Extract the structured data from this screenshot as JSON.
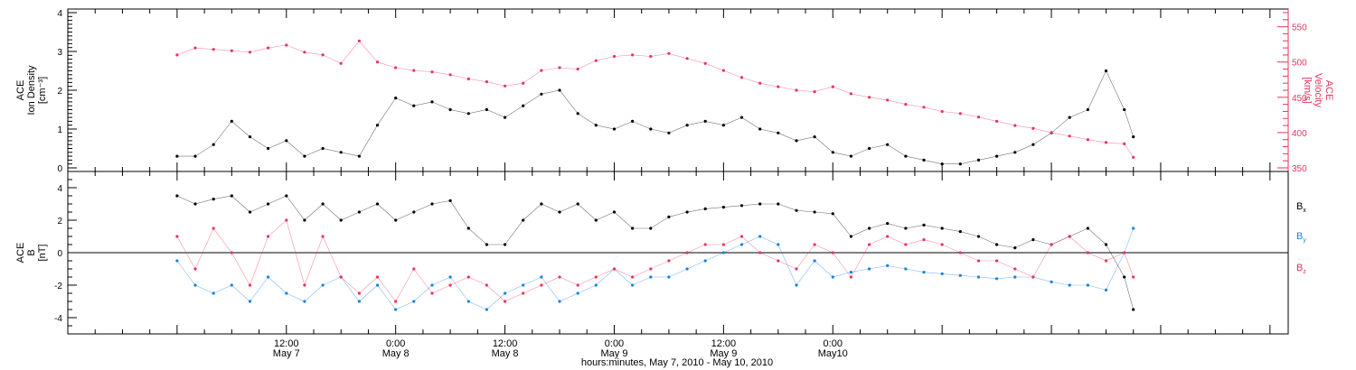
{
  "chart_data": [
    {
      "type": "scatter",
      "panel": "top",
      "ylabel": [
        "ACE",
        "Ion Density",
        "[cm⁻³]"
      ],
      "ylabel_right": [
        "ACE",
        "Velocity",
        "[km/s]"
      ],
      "ylim": [
        0,
        4
      ],
      "yticks": [
        "0",
        "1",
        "2",
        "3",
        "4"
      ],
      "ylim_right": [
        350,
        570
      ],
      "yticks_right": [
        "350",
        "400",
        "450",
        "500",
        "550"
      ],
      "grid": false,
      "series": [
        {
          "axis": "left",
          "color": "#000000",
          "x": [
            0,
            2,
            4,
            6,
            8,
            10,
            12,
            14,
            16,
            18,
            20,
            22,
            24,
            26,
            28,
            30,
            32,
            34,
            36,
            38,
            40,
            42,
            44,
            46,
            48,
            50,
            52,
            54,
            56,
            58,
            60,
            62,
            64,
            66,
            68,
            70,
            72,
            74,
            76,
            78,
            80,
            82,
            84,
            86,
            88,
            90,
            92,
            94,
            96,
            98,
            100,
            102,
            104,
            105
          ],
          "values": [
            0.3,
            0.3,
            0.6,
            1.2,
            0.8,
            0.5,
            0.7,
            0.3,
            0.5,
            0.4,
            0.3,
            1.1,
            1.8,
            1.6,
            1.7,
            1.5,
            1.4,
            1.5,
            1.3,
            1.6,
            1.9,
            2.0,
            1.4,
            1.1,
            1.0,
            1.2,
            1.0,
            0.9,
            1.1,
            1.2,
            1.1,
            1.3,
            1.0,
            0.9,
            0.7,
            0.8,
            0.4,
            0.3,
            0.5,
            0.6,
            0.3,
            0.2,
            0.1,
            0.1,
            0.2,
            0.3,
            0.4,
            0.6,
            0.9,
            1.3,
            1.5,
            2.5,
            1.5,
            0.8
          ]
        },
        {
          "axis": "right",
          "color": "#e8345c",
          "x": [
            0,
            2,
            4,
            6,
            8,
            10,
            12,
            14,
            16,
            18,
            20,
            22,
            24,
            26,
            28,
            30,
            32,
            34,
            36,
            38,
            40,
            42,
            44,
            46,
            48,
            50,
            52,
            54,
            56,
            58,
            60,
            62,
            64,
            66,
            68,
            70,
            72,
            74,
            76,
            78,
            80,
            82,
            84,
            86,
            88,
            90,
            92,
            94,
            96,
            98,
            100,
            102,
            104,
            105
          ],
          "values": [
            510,
            520,
            518,
            516,
            514,
            520,
            524,
            514,
            510,
            498,
            530,
            500,
            492,
            488,
            486,
            482,
            476,
            472,
            466,
            470,
            488,
            492,
            490,
            502,
            508,
            510,
            508,
            512,
            505,
            498,
            488,
            478,
            470,
            465,
            460,
            458,
            465,
            455,
            450,
            446,
            440,
            436,
            430,
            427,
            422,
            416,
            410,
            406,
            400,
            395,
            390,
            386,
            384,
            365
          ]
        }
      ]
    },
    {
      "type": "scatter",
      "panel": "bottom",
      "ylabel": [
        "ACE",
        "B",
        "[nT]"
      ],
      "ylim": [
        -5,
        5
      ],
      "yticks": [
        "-4",
        "-2",
        "0",
        "2",
        "4"
      ],
      "zero_line": true,
      "grid": false,
      "series": [
        {
          "name": "Bx",
          "color": "#000000",
          "x": [
            0,
            2,
            4,
            6,
            8,
            10,
            12,
            14,
            16,
            18,
            20,
            22,
            24,
            26,
            28,
            30,
            32,
            34,
            36,
            38,
            40,
            42,
            44,
            46,
            48,
            50,
            52,
            54,
            56,
            58,
            60,
            62,
            64,
            66,
            68,
            70,
            72,
            74,
            76,
            78,
            80,
            82,
            84,
            86,
            88,
            90,
            92,
            94,
            96,
            98,
            100,
            102,
            104,
            105
          ],
          "values": [
            3.5,
            3.0,
            3.3,
            3.5,
            2.5,
            3.0,
            3.5,
            2.0,
            3.0,
            2.0,
            2.5,
            3.0,
            2.0,
            2.5,
            3.0,
            3.2,
            1.5,
            0.5,
            0.5,
            2.0,
            3.0,
            2.5,
            3.0,
            2.0,
            2.5,
            1.5,
            1.5,
            2.2,
            2.5,
            2.7,
            2.8,
            2.9,
            3.0,
            3.0,
            2.6,
            2.5,
            2.4,
            1.0,
            1.5,
            1.8,
            1.5,
            1.7,
            1.5,
            1.3,
            1.0,
            0.5,
            0.3,
            0.8,
            0.5,
            1.0,
            1.5,
            0.5,
            -1.5,
            -3.5
          ]
        },
        {
          "name": "By",
          "color": "#1a80e0",
          "x": [
            0,
            2,
            4,
            6,
            8,
            10,
            12,
            14,
            16,
            18,
            20,
            22,
            24,
            26,
            28,
            30,
            32,
            34,
            36,
            38,
            40,
            42,
            44,
            46,
            48,
            50,
            52,
            54,
            56,
            58,
            60,
            62,
            64,
            66,
            68,
            70,
            72,
            74,
            76,
            78,
            80,
            82,
            84,
            86,
            88,
            90,
            92,
            94,
            96,
            98,
            100,
            102,
            104,
            105
          ],
          "values": [
            -0.5,
            -2.0,
            -2.5,
            -2.0,
            -3.0,
            -1.5,
            -2.5,
            -3.0,
            -2.0,
            -1.5,
            -3.0,
            -2.0,
            -3.5,
            -3.0,
            -2.0,
            -1.5,
            -3.0,
            -3.5,
            -2.5,
            -2.0,
            -1.5,
            -3.0,
            -2.5,
            -2.0,
            -1.0,
            -2.0,
            -1.5,
            -1.5,
            -1.0,
            -0.5,
            0.0,
            0.5,
            1.0,
            0.5,
            -2.0,
            -0.5,
            -1.5,
            -1.2,
            -1.0,
            -0.8,
            -1.0,
            -1.2,
            -1.3,
            -1.4,
            -1.5,
            -1.6,
            -1.5,
            -1.5,
            -1.8,
            -2.0,
            -2.0,
            -2.3,
            0.0,
            1.5
          ]
        },
        {
          "name": "Bz",
          "color": "#e8345c",
          "x": [
            0,
            2,
            4,
            6,
            8,
            10,
            12,
            14,
            16,
            18,
            20,
            22,
            24,
            26,
            28,
            30,
            32,
            34,
            36,
            38,
            40,
            42,
            44,
            46,
            48,
            50,
            52,
            54,
            56,
            58,
            60,
            62,
            64,
            66,
            68,
            70,
            72,
            74,
            76,
            78,
            80,
            82,
            84,
            86,
            88,
            90,
            92,
            94,
            96,
            98,
            100,
            102,
            104,
            105
          ],
          "values": [
            1.0,
            -1.0,
            1.5,
            0.0,
            -2.0,
            1.0,
            2.0,
            -2.0,
            1.0,
            -1.5,
            -2.5,
            -1.5,
            -3.0,
            -1.0,
            -2.5,
            -2.0,
            -1.5,
            -2.0,
            -3.0,
            -2.5,
            -2.0,
            -1.5,
            -2.0,
            -1.5,
            -1.0,
            -1.5,
            -1.0,
            -0.5,
            0.0,
            0.5,
            0.5,
            1.0,
            0.0,
            -0.5,
            -1.0,
            0.5,
            0.0,
            -1.5,
            0.5,
            1.0,
            0.5,
            0.8,
            0.5,
            0.0,
            -0.5,
            -0.5,
            -1.0,
            -1.5,
            0.5,
            1.0,
            0.0,
            -0.5,
            0.0,
            -1.5
          ]
        }
      ]
    }
  ],
  "legend": {
    "bx": {
      "base": "B",
      "sub": "x"
    },
    "by": {
      "base": "B",
      "sub": "y"
    },
    "bz": {
      "base": "B",
      "sub": "z"
    }
  },
  "xaxis": {
    "title": "hours:minutes, May  7, 2010 - May 10, 2010",
    "range": [
      -12,
      122
    ],
    "ticks": [
      {
        "x": 12,
        "time": "12:00",
        "date": "May 7"
      },
      {
        "x": 24,
        "time": "0:00",
        "date": "May 8"
      },
      {
        "x": 36,
        "time": "12:00",
        "date": "May 8"
      },
      {
        "x": 48,
        "time": "0:00",
        "date": "May 9"
      },
      {
        "x": 60,
        "time": "12:00",
        "date": "May 9"
      },
      {
        "x": 72,
        "time": "0:00",
        "date": "May10"
      }
    ]
  },
  "colors": {
    "density": "#000000",
    "velocity": "#e8345c",
    "bx": "#000000",
    "by": "#1a80e0",
    "bz": "#e8345c",
    "axis": "#000000"
  }
}
